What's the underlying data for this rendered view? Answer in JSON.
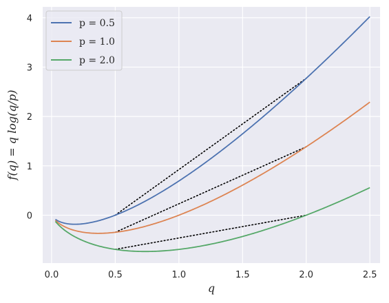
{
  "chart_data": {
    "type": "line",
    "title": "",
    "xlabel": "q",
    "ylabel": "f(q) = q log(q/p)",
    "xlim": [
      -0.07,
      2.58
    ],
    "ylim": [
      -0.97,
      4.22
    ],
    "xticks": [
      0.0,
      0.5,
      1.0,
      1.5,
      2.0,
      2.5
    ],
    "xtick_labels": [
      "0.0",
      "0.5",
      "1.0",
      "1.5",
      "2.0",
      "2.5"
    ],
    "yticks": [
      0,
      1,
      2,
      3,
      4
    ],
    "ytick_labels": [
      "0",
      "1",
      "2",
      "3",
      "4"
    ],
    "grid": true,
    "legend_position": "top-left",
    "function": "f(q) = q*log(q/p)",
    "q_range": [
      0.03,
      2.5
    ],
    "series": [
      {
        "name": "p = 0.5",
        "p": 0.5,
        "color": "#4c72b0",
        "x": [
          0.03,
          0.1,
          0.18,
          0.3,
          0.5,
          0.75,
          1.0,
          1.25,
          1.5,
          1.75,
          2.0,
          2.25,
          2.5
        ],
        "y": [
          -0.084,
          -0.161,
          -0.184,
          -0.153,
          0.0,
          0.304,
          0.693,
          1.145,
          1.648,
          2.192,
          2.773,
          3.384,
          4.024
        ]
      },
      {
        "name": "p = 1.0",
        "p": 1.0,
        "color": "#dd8452",
        "x": [
          0.03,
          0.1,
          0.2,
          0.37,
          0.5,
          0.75,
          1.0,
          1.25,
          1.5,
          1.75,
          2.0,
          2.25,
          2.5
        ],
        "y": [
          -0.105,
          -0.23,
          -0.322,
          -0.368,
          -0.347,
          -0.216,
          0.0,
          0.279,
          0.608,
          0.979,
          1.386,
          1.825,
          2.291
        ]
      },
      {
        "name": "p = 2.0",
        "p": 2.0,
        "color": "#55a868",
        "x": [
          0.03,
          0.1,
          0.25,
          0.5,
          0.74,
          1.0,
          1.25,
          1.5,
          1.75,
          2.0,
          2.25,
          2.5
        ],
        "y": [
          -0.126,
          -0.3,
          -0.52,
          -0.693,
          -0.736,
          -0.693,
          -0.588,
          -0.432,
          -0.234,
          0.0,
          0.265,
          0.558
        ]
      }
    ],
    "annotations": [
      {
        "type": "dotted-line",
        "color": "#000000",
        "x": [
          0.5,
          2.0
        ],
        "y": [
          0.0,
          2.773
        ]
      },
      {
        "type": "dotted-line",
        "color": "#000000",
        "x": [
          0.5,
          2.0
        ],
        "y": [
          -0.347,
          1.386
        ]
      },
      {
        "type": "dotted-line",
        "color": "#000000",
        "x": [
          0.5,
          2.0
        ],
        "y": [
          -0.693,
          0.0
        ]
      }
    ]
  }
}
